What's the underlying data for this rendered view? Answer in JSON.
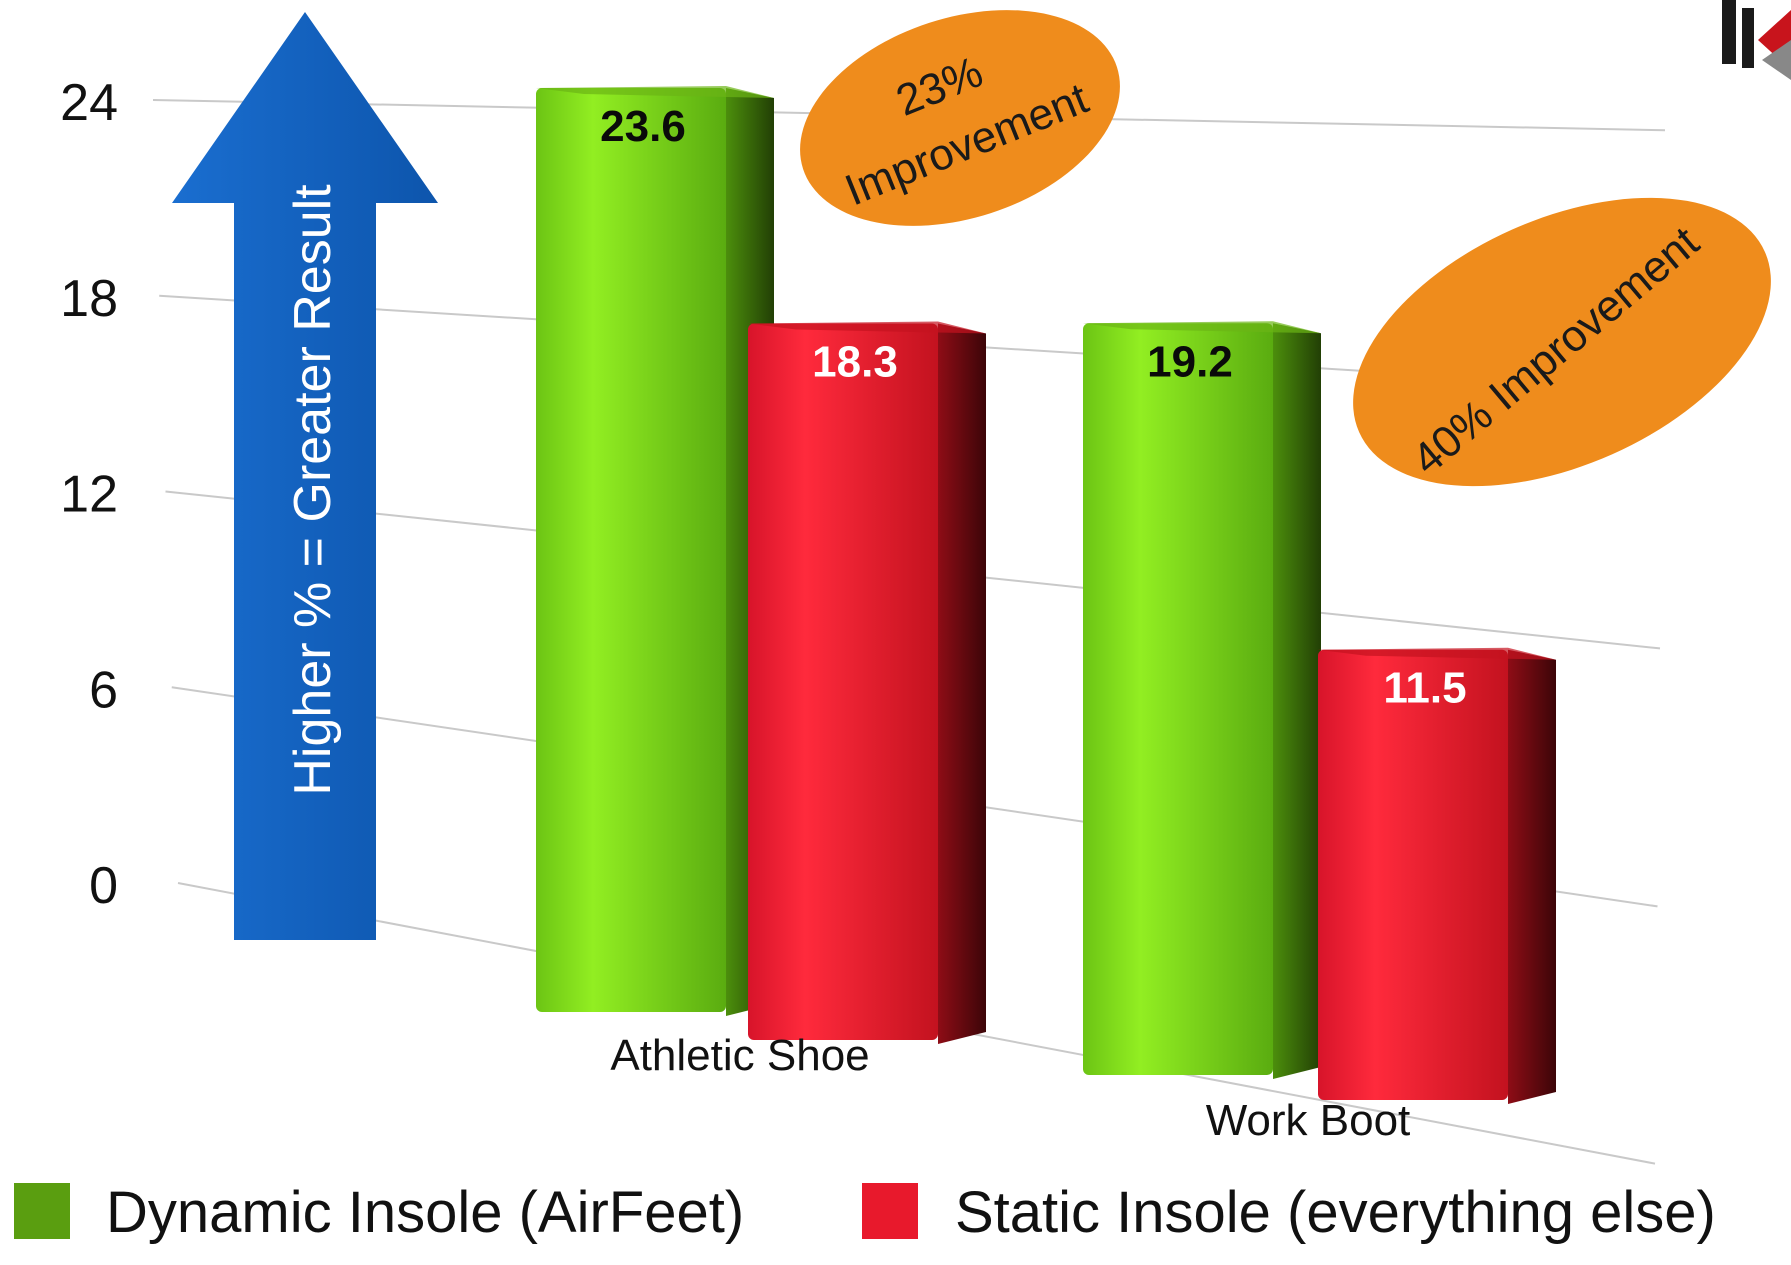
{
  "chart_data": {
    "type": "bar",
    "categories": [
      "Athletic Shoe",
      "Work Boot"
    ],
    "series": [
      {
        "name": "Dynamic Insole (AirFeet)",
        "values": [
          23.6,
          19.2
        ],
        "labels": [
          "23.6",
          "19.2"
        ]
      },
      {
        "name": "Static Insole (everything else)",
        "values": [
          18.3,
          11.5
        ],
        "labels": [
          "18.3",
          "11.5"
        ]
      }
    ],
    "y_ticks": [
      "0",
      "6",
      "12",
      "18",
      "24"
    ],
    "ylim": [
      0,
      24
    ],
    "grid": true,
    "legend_position": "bottom",
    "colors": {
      "dynamic": "#7ed21b",
      "static": "#e8192c",
      "arrow": "#1464c0",
      "badge": "#ef8c1c"
    },
    "arrow_label": "Higher  % = Greater Result",
    "annotations": [
      {
        "line1": "23%",
        "line2": "Improvement"
      },
      {
        "line1": "40% Improvement"
      }
    ]
  }
}
